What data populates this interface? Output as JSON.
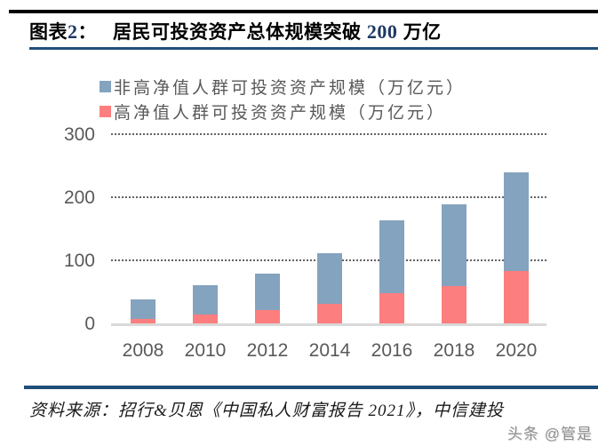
{
  "header": {
    "fig_prefix": "图表",
    "fig_number": "2",
    "fig_colon": "：",
    "title_main": "居民可投资资产总体规模突破",
    "title_number": "200",
    "title_unit": "万亿"
  },
  "legend": {
    "items": [
      {
        "label": "非高净值人群可投资资产规模（万亿元）",
        "color": "#84A3BE"
      },
      {
        "label": "高净值人群可投资资产规模（万亿元）",
        "color": "#FC7E7E"
      }
    ]
  },
  "chart_data": {
    "type": "bar",
    "stacked": true,
    "title": "居民可投资资产总体规模突破 200 万亿",
    "categories": [
      "2008",
      "2010",
      "2012",
      "2014",
      "2016",
      "2018",
      "2020"
    ],
    "series": [
      {
        "name": "高净值人群可投资资产规模（万亿元）",
        "color": "#FC7E7E",
        "values": [
          9,
          15,
          22,
          32,
          49,
          61,
          84
        ]
      },
      {
        "name": "非高净值人群可投资资产规模（万亿元）",
        "color": "#84A3BE",
        "values": [
          30,
          47,
          58,
          80,
          116,
          129,
          157
        ]
      }
    ],
    "totals": [
      39,
      62,
      80,
      112,
      165,
      190,
      241
    ],
    "xlabel": "",
    "ylabel": "",
    "ylim": [
      0,
      300
    ],
    "yticks": [
      0,
      100,
      200,
      300
    ],
    "grid": "horizontal-dotted",
    "legend_position": "top-center"
  },
  "footer": {
    "source": "资料来源：招行&贝恩《中国私人财富报告 2021》，中信建投",
    "watermark": "头条 @管是"
  },
  "colors": {
    "non_hnw_blue": "#84A3BE",
    "hnw_red": "#FC7E7E",
    "rule_navy": "#1F4E79",
    "title_number_navy": "#1F3864",
    "axis_text_gray": "#595959",
    "baseline_gray": "#D9D9D9",
    "top_bar_black": "#000000"
  }
}
